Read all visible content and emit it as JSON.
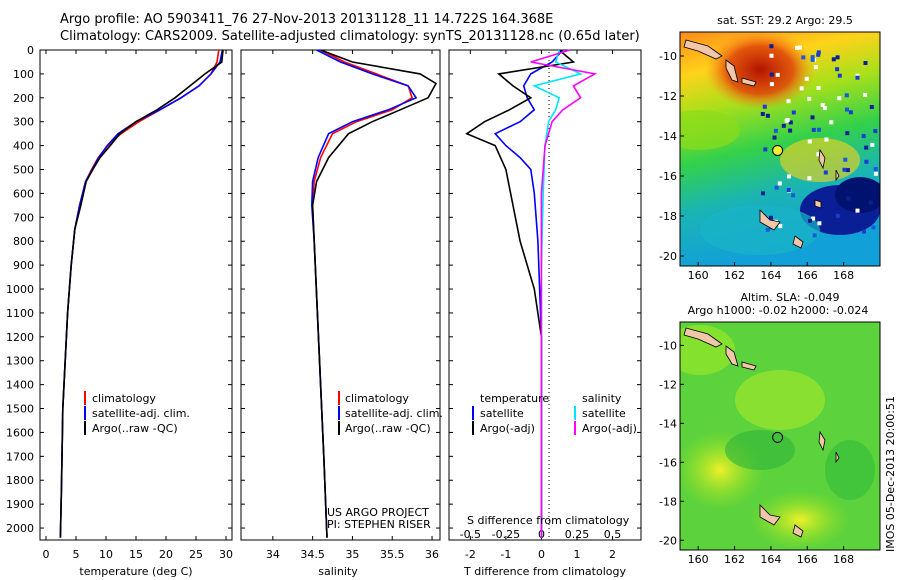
{
  "header": {
    "line1": "Argo profile: AO 5903411_76 27-Nov-2013 20131128_11 14.722S 164.368E",
    "line2": "Climatology: CARS2009. Satellite-adjusted climatology: synTS_20131128.nc (0.65d later)"
  },
  "map_top": {
    "title": "sat. SST: 29.2 Argo: 29.5"
  },
  "map_bottom": {
    "title1": "Altim. SLA: -0.049",
    "title2": "Argo h1000: -0.02 h2000: -0.024"
  },
  "credit": {
    "vertical": "IMOS 05-Dec-2013 20:00:51"
  },
  "project": {
    "line1": "US ARGO PROJECT",
    "line2": "PI: STEPHEN RISER"
  },
  "legend_temp": [
    "climatology",
    "satellite-adj. clim.",
    "Argo(..raw -QC)"
  ],
  "legend_sal": [
    "climatology",
    "satellite-adj. clim.",
    "Argo(..raw -QC)"
  ],
  "legend_diff": {
    "t_head": "temperature",
    "t_sat": "satellite",
    "t_argo": "Argo(-adj)",
    "s_head": "salinity",
    "s_sat": "satellite",
    "s_argo": "Argo(-adj)"
  },
  "colors": {
    "clim": "#ff0000",
    "sat": "#0000ff",
    "argo": "#000000",
    "s_sat": "#00e5ff",
    "s_argo": "#ff00ff"
  },
  "chart_data": [
    {
      "type": "line",
      "xlabel": "temperature (deg C)",
      "xlim": [
        -1,
        31
      ],
      "ylim": [
        2050,
        0
      ],
      "xticks": [
        0,
        5,
        10,
        15,
        20,
        25,
        30
      ],
      "yticks": [
        0,
        100,
        200,
        300,
        400,
        500,
        600,
        700,
        800,
        900,
        1000,
        1100,
        1200,
        1300,
        1400,
        1500,
        1600,
        1700,
        1800,
        1900,
        2000
      ],
      "series": [
        {
          "name": "climatology",
          "color": "#ff0000",
          "x": [
            28.8,
            28.5,
            27.5,
            25.5,
            22.5,
            19,
            15.5,
            12.5,
            10.3,
            8.7,
            7.6,
            6.6,
            5.6,
            4.8,
            4.2,
            3.6,
            3.2,
            2.8,
            2.6,
            2.4
          ],
          "y": [
            0,
            50,
            100,
            150,
            200,
            250,
            300,
            350,
            400,
            450,
            500,
            550,
            650,
            750,
            900,
            1100,
            1300,
            1500,
            1800,
            2040
          ]
        },
        {
          "name": "satellite-adj. clim.",
          "color": "#0000ff",
          "x": [
            29.4,
            29,
            27.5,
            25.5,
            22.5,
            19,
            15,
            12,
            10.2,
            8.8,
            7.7,
            6.6,
            5.6,
            4.8,
            4.2,
            3.6,
            3.2,
            2.8,
            2.6,
            2.4
          ],
          "y": [
            0,
            50,
            100,
            150,
            200,
            250,
            300,
            350,
            400,
            450,
            500,
            550,
            650,
            750,
            900,
            1100,
            1300,
            1500,
            1800,
            2040
          ]
        },
        {
          "name": "Argo(..raw -QC)",
          "color": "#000000",
          "x": [
            29.5,
            29.3,
            26.5,
            24,
            21.5,
            18.5,
            15,
            12.3,
            10.7,
            9,
            7.8,
            6.7,
            5.8,
            4.8,
            4.2,
            3.6,
            3.2,
            2.8,
            2.6,
            2.4
          ],
          "y": [
            0,
            50,
            100,
            150,
            200,
            250,
            300,
            350,
            400,
            450,
            500,
            550,
            650,
            750,
            900,
            1100,
            1300,
            1500,
            1800,
            2040
          ]
        }
      ]
    },
    {
      "type": "line",
      "xlabel": "salinity",
      "xlim": [
        33.6,
        36.1
      ],
      "ylim": [
        2050,
        0
      ],
      "xticks": [
        34,
        34.5,
        35,
        35.5,
        36
      ],
      "series": [
        {
          "name": "climatology",
          "color": "#ff0000",
          "x": [
            34.6,
            34.9,
            35.3,
            35.7,
            35.75,
            35.5,
            35.05,
            34.75,
            34.6,
            34.52,
            34.5,
            34.52,
            34.56,
            34.6,
            34.64,
            34.68
          ],
          "y": [
            0,
            50,
            100,
            150,
            200,
            250,
            300,
            350,
            450,
            550,
            650,
            800,
            1100,
            1400,
            1700,
            2040
          ]
        },
        {
          "name": "satellite-adj. clim.",
          "color": "#0000ff",
          "x": [
            34.55,
            34.85,
            35.25,
            35.7,
            35.8,
            35.45,
            35.0,
            34.7,
            34.57,
            34.5,
            34.49,
            34.52,
            34.56,
            34.6,
            34.64,
            34.68
          ],
          "y": [
            0,
            50,
            100,
            150,
            200,
            250,
            300,
            350,
            450,
            550,
            650,
            800,
            1100,
            1400,
            1700,
            2040
          ]
        },
        {
          "name": "Argo(..raw -QC)",
          "color": "#000000",
          "x": [
            34.6,
            35.0,
            35.85,
            36.05,
            35.95,
            35.6,
            35.25,
            34.95,
            34.7,
            34.55,
            34.5,
            34.52,
            34.56,
            34.6,
            34.64,
            34.68
          ],
          "y": [
            0,
            50,
            100,
            140,
            200,
            250,
            300,
            350,
            450,
            550,
            650,
            800,
            1100,
            1400,
            1700,
            2040
          ]
        }
      ]
    },
    {
      "type": "line",
      "xlabel": "T difference from climatology",
      "xlabel2": "S difference from climatology",
      "xlim": [
        -2.6,
        2.8
      ],
      "ylim": [
        2050,
        0
      ],
      "xticks": [
        -2,
        -1,
        0,
        1,
        2
      ],
      "xticks_s_labels": [
        "-0.5",
        "-0.25",
        "0",
        "0.25",
        "0.5"
      ],
      "xticks_s_pos": [
        -2,
        -1,
        0,
        1,
        2
      ],
      "series": [
        {
          "name": "temperature satellite",
          "color": "#0000ff",
          "x": [
            0.6,
            0.3,
            -0.3,
            -0.5,
            -0.4,
            -0.2,
            -0.6,
            -1.3,
            -1.0,
            -0.6,
            -0.3,
            -0.2,
            -0.1,
            0,
            0,
            0
          ],
          "y": [
            0,
            50,
            100,
            150,
            200,
            250,
            300,
            350,
            400,
            450,
            500,
            600,
            800,
            1200,
            1600,
            2040
          ]
        },
        {
          "name": "temperature Argo(-adj)",
          "color": "#000000",
          "x": [
            0.5,
            0.9,
            -1.2,
            -0.8,
            -0.3,
            -0.9,
            -1.6,
            -2.1,
            -1.3,
            -1.0,
            -0.8,
            -0.6,
            -0.2,
            0,
            0,
            0
          ],
          "y": [
            0,
            50,
            100,
            150,
            200,
            250,
            300,
            350,
            400,
            500,
            650,
            800,
            1000,
            1200,
            1600,
            2040
          ]
        },
        {
          "name": "salinity satellite",
          "color": "#00e5ff",
          "x": [
            0.5,
            0.4,
            1.1,
            -0.2,
            0.5,
            0.4,
            0.2,
            0.1,
            0.05,
            0,
            0,
            0
          ],
          "y": [
            0,
            50,
            100,
            150,
            200,
            250,
            300,
            400,
            600,
            900,
            1400,
            2040
          ]
        },
        {
          "name": "salinity Argo(-adj)",
          "color": "#ff00ff",
          "x": [
            0.8,
            -0.3,
            1.5,
            0.9,
            1.1,
            0.6,
            0.3,
            0.1,
            0,
            0,
            0
          ],
          "y": [
            0,
            50,
            100,
            150,
            200,
            250,
            300,
            400,
            600,
            1000,
            2040
          ]
        }
      ]
    },
    {
      "type": "heatmap",
      "title": "sat. SST: 29.2 Argo: 29.5",
      "xlim": [
        159,
        170
      ],
      "ylim": [
        -20.5,
        -8.8
      ],
      "xticks": [
        160,
        162,
        164,
        166,
        168
      ],
      "yticks": [
        -10,
        -12,
        -14,
        -16,
        -18,
        -20
      ],
      "marker": {
        "lon": 164.368,
        "lat": -14.722
      }
    },
    {
      "type": "heatmap",
      "title": "Altim. SLA: -0.049",
      "xlim": [
        159,
        170
      ],
      "ylim": [
        -20.5,
        -8.8
      ],
      "xticks": [
        160,
        162,
        164,
        166,
        168
      ],
      "yticks": [
        -10,
        -12,
        -14,
        -16,
        -18,
        -20
      ],
      "marker": {
        "lon": 164.368,
        "lat": -14.722
      }
    }
  ]
}
